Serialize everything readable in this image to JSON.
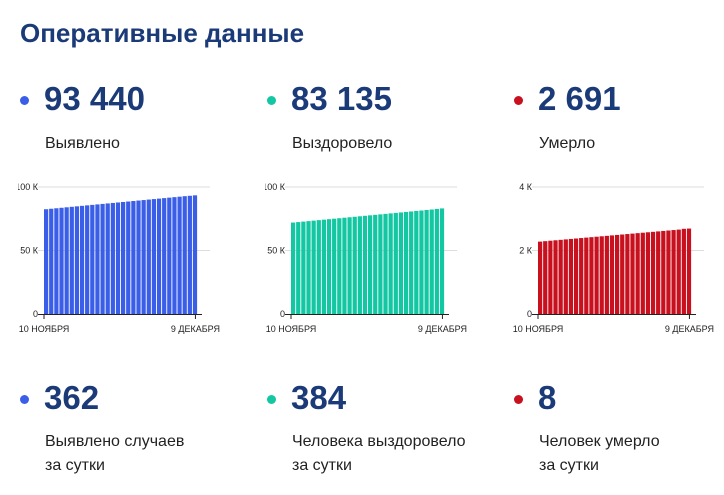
{
  "page_title": "Оперативные данные",
  "stats": [
    {
      "color": "#3b5ee9",
      "total": "93 440",
      "total_label": "Выявлено",
      "daily": "362",
      "daily_label_1": "Выявлено случаев",
      "daily_label_2": "за сутки"
    },
    {
      "color": "#12c7a2",
      "total": "83 135",
      "total_label": "Выздоровело",
      "daily": "384",
      "daily_label_1": "Человека выздоровело",
      "daily_label_2": "за сутки"
    },
    {
      "color": "#c8101e",
      "total": "2 691",
      "total_label": "Умерло",
      "daily": "8",
      "daily_label_1": "Человек умерло",
      "daily_label_2": "за сутки"
    }
  ],
  "chart_data": [
    {
      "type": "bar",
      "series_color": "#3b5ee9",
      "x_start_label": "10 НОЯБРЯ",
      "x_end_label": "9 ДЕКАБРЯ",
      "y_ticks": [
        {
          "value": 0,
          "label": "0"
        },
        {
          "value": 50000,
          "label": "50 К"
        },
        {
          "value": 100000,
          "label": "100 К"
        }
      ],
      "ylim": [
        0,
        100000
      ],
      "values": [
        82500,
        82880,
        83260,
        83640,
        84020,
        84400,
        84780,
        85160,
        85540,
        85920,
        86300,
        86680,
        87060,
        87440,
        87820,
        88200,
        88580,
        88960,
        89340,
        89720,
        90100,
        90480,
        90860,
        91240,
        91620,
        92000,
        92380,
        92760,
        93078,
        93440
      ]
    },
    {
      "type": "bar",
      "series_color": "#12c7a2",
      "x_start_label": "10 НОЯБРЯ",
      "x_end_label": "9 ДЕКАБРЯ",
      "y_ticks": [
        {
          "value": 0,
          "label": "0"
        },
        {
          "value": 50000,
          "label": "50 К"
        },
        {
          "value": 100000,
          "label": "100 К"
        }
      ],
      "ylim": [
        0,
        100000
      ],
      "values": [
        72000,
        72380,
        72760,
        73140,
        73520,
        73900,
        74280,
        74660,
        75040,
        75420,
        75800,
        76180,
        76560,
        76940,
        77320,
        77700,
        78080,
        78460,
        78840,
        79220,
        79600,
        79980,
        80360,
        80740,
        81120,
        81500,
        81880,
        82260,
        82751,
        83135
      ]
    },
    {
      "type": "bar",
      "series_color": "#c8101e",
      "x_start_label": "10 НОЯБРЯ",
      "x_end_label": "9 ДЕКАБРЯ",
      "y_ticks": [
        {
          "value": 0,
          "label": "0"
        },
        {
          "value": 2000,
          "label": "2 К"
        },
        {
          "value": 4000,
          "label": "4 К"
        }
      ],
      "ylim": [
        0,
        4000
      ],
      "values": [
        2280,
        2294,
        2308,
        2322,
        2336,
        2350,
        2364,
        2378,
        2392,
        2406,
        2420,
        2434,
        2448,
        2462,
        2476,
        2490,
        2504,
        2518,
        2532,
        2546,
        2560,
        2574,
        2588,
        2602,
        2616,
        2630,
        2644,
        2658,
        2683,
        2691
      ]
    }
  ]
}
